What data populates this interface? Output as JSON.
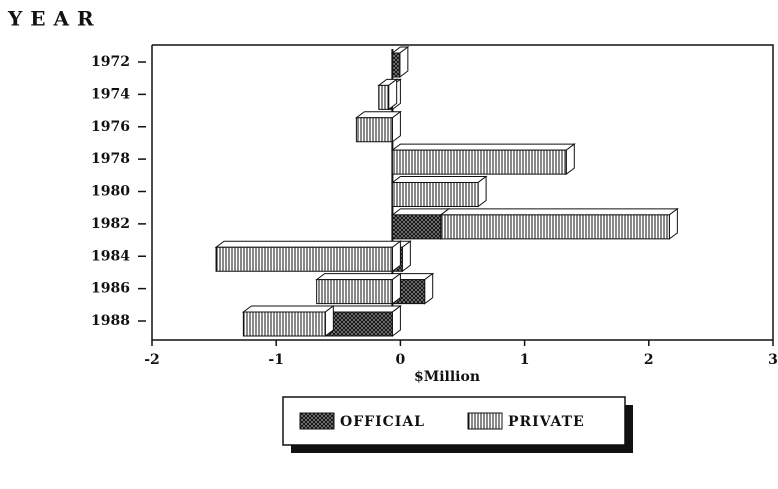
{
  "chart_data": {
    "type": "bar",
    "orientation": "horizontal",
    "stacked": true,
    "y_label": "YEAR",
    "x_label": "$Million",
    "categories": [
      "1972",
      "1974",
      "1976",
      "1978",
      "1980",
      "1982",
      "1984",
      "1986",
      "1988"
    ],
    "series": [
      {
        "name": "OFFICIAL",
        "color": "#222222",
        "pattern": "crosshatch",
        "values": [
          0.06,
          -0.03,
          0,
          0,
          0,
          0.39,
          0.08,
          0.26,
          -0.54
        ]
      },
      {
        "name": "PRIVATE",
        "color": "#222222",
        "pattern": "vertical",
        "values": [
          0,
          -0.08,
          -0.29,
          1.4,
          0.69,
          1.84,
          -1.42,
          -0.61,
          -0.66
        ]
      }
    ],
    "xlim": [
      -2,
      3
    ],
    "xticks": [
      -2,
      -1,
      0,
      1,
      2,
      3
    ],
    "legend": "bottom"
  }
}
